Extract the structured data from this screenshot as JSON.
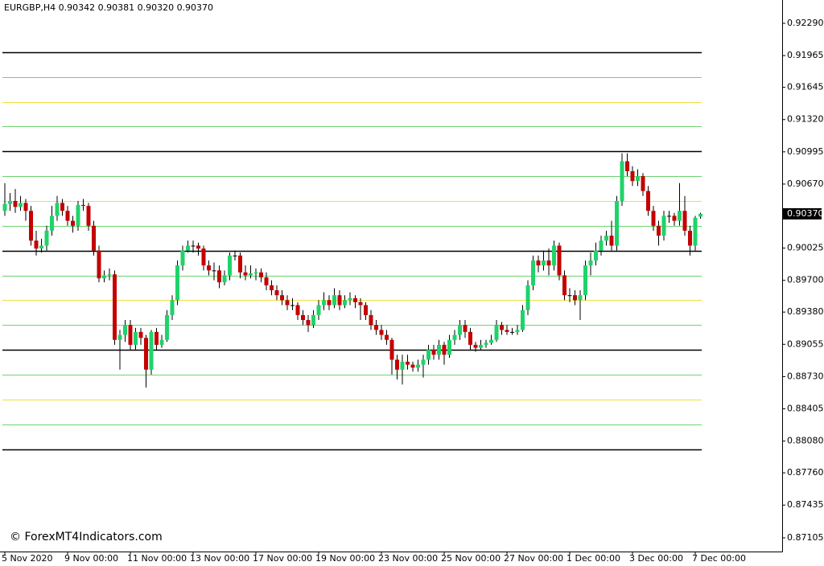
{
  "chart_data": {
    "type": "candlestick",
    "title": "EURGBP,H4  0.90342 0.90381 0.90320 0.90370",
    "watermark": "© ForexMT4Indicators.com",
    "up_color": "#1fd36a",
    "down_color": "#c40000",
    "wick_color": "#000000",
    "ylim": [
      0.86967,
      0.92525
    ],
    "yticks": [
      {
        "value": 0.9229,
        "label": "0.92290"
      },
      {
        "value": 0.91965,
        "label": "0.91965"
      },
      {
        "value": 0.91645,
        "label": "0.91645"
      },
      {
        "value": 0.9132,
        "label": "0.91320"
      },
      {
        "value": 0.90995,
        "label": "0.90995"
      },
      {
        "value": 0.9067,
        "label": "0.90670"
      },
      {
        "value": 0.90025,
        "label": "0.90025"
      },
      {
        "value": 0.897,
        "label": "0.89700"
      },
      {
        "value": 0.8938,
        "label": "0.89380"
      },
      {
        "value": 0.89055,
        "label": "0.89055"
      },
      {
        "value": 0.8873,
        "label": "0.88730"
      },
      {
        "value": 0.88405,
        "label": "0.88405"
      },
      {
        "value": 0.8808,
        "label": "0.88080"
      },
      {
        "value": 0.8776,
        "label": "0.87760"
      },
      {
        "value": 0.87435,
        "label": "0.87435"
      },
      {
        "value": 0.87105,
        "label": "0.87105"
      }
    ],
    "current_price": {
      "value": 0.9037,
      "label": "0.90370"
    },
    "xticks": [
      {
        "value": 0,
        "label": "5 Nov 2020"
      },
      {
        "value": 12,
        "label": "9 Nov 00:00"
      },
      {
        "value": 24,
        "label": "11 Nov 00:00"
      },
      {
        "value": 36,
        "label": "13 Nov 00:00"
      },
      {
        "value": 48,
        "label": "17 Nov 00:00"
      },
      {
        "value": 60,
        "label": "19 Nov 00:00"
      },
      {
        "value": 72,
        "label": "23 Nov 00:00"
      },
      {
        "value": 84,
        "label": "25 Nov 00:00"
      },
      {
        "value": 96,
        "label": "27 Nov 00:00"
      },
      {
        "value": 108,
        "label": "1 Dec 00:00"
      },
      {
        "value": 120,
        "label": "3 Dec 00:00"
      },
      {
        "value": 132,
        "label": "7 Dec 00:00"
      }
    ],
    "levels": [
      {
        "value": 0.92,
        "color": "#000000"
      },
      {
        "value": 0.9175,
        "color": "#6fd36f"
      },
      {
        "value": 0.915,
        "color": "#f0e040"
      },
      {
        "value": 0.9125,
        "color": "#6fd36f"
      },
      {
        "value": 0.91,
        "color": "#000000"
      },
      {
        "value": 0.9075,
        "color": "#6fd36f"
      },
      {
        "value": 0.905,
        "color": "#f0e040"
      },
      {
        "value": 0.9025,
        "color": "#6fd36f"
      },
      {
        "value": 0.9,
        "color": "#000000"
      },
      {
        "value": 0.8975,
        "color": "#6fd36f"
      },
      {
        "value": 0.895,
        "color": "#f0e040"
      },
      {
        "value": 0.8925,
        "color": "#6fd36f"
      },
      {
        "value": 0.89,
        "color": "#000000"
      },
      {
        "value": 0.8875,
        "color": "#6fd36f"
      },
      {
        "value": 0.885,
        "color": "#f0e040"
      },
      {
        "value": 0.8825,
        "color": "#6fd36f"
      },
      {
        "value": 0.88,
        "color": "#000000"
      }
    ],
    "ohlc": [
      [
        0.904,
        0.9068,
        0.9035,
        0.9047
      ],
      [
        0.9047,
        0.9058,
        0.904,
        0.905
      ],
      [
        0.905,
        0.9062,
        0.9038,
        0.9044
      ],
      [
        0.9044,
        0.9055,
        0.904,
        0.9048
      ],
      [
        0.9048,
        0.9052,
        0.903,
        0.904
      ],
      [
        0.904,
        0.9045,
        0.9005,
        0.901
      ],
      [
        0.901,
        0.902,
        0.8995,
        0.9002
      ],
      [
        0.9002,
        0.9012,
        0.8998,
        0.9005
      ],
      [
        0.9005,
        0.9025,
        0.9,
        0.902
      ],
      [
        0.902,
        0.9045,
        0.9015,
        0.9035
      ],
      [
        0.9035,
        0.9055,
        0.903,
        0.9048
      ],
      [
        0.9048,
        0.9052,
        0.9035,
        0.904
      ],
      [
        0.904,
        0.9045,
        0.9025,
        0.903
      ],
      [
        0.903,
        0.9035,
        0.9018,
        0.9025
      ],
      [
        0.9025,
        0.905,
        0.902,
        0.9046
      ],
      [
        0.9046,
        0.9052,
        0.904,
        0.9045
      ],
      [
        0.9045,
        0.9048,
        0.902,
        0.9025
      ],
      [
        0.9025,
        0.903,
        0.8995,
        0.9
      ],
      [
        0.9,
        0.9005,
        0.8968,
        0.8972
      ],
      [
        0.8972,
        0.898,
        0.8968,
        0.8975
      ],
      [
        0.8975,
        0.8982,
        0.897,
        0.8976
      ],
      [
        0.8976,
        0.898,
        0.8905,
        0.891
      ],
      [
        0.891,
        0.892,
        0.888,
        0.8915
      ],
      [
        0.8915,
        0.893,
        0.8908,
        0.8925
      ],
      [
        0.8925,
        0.893,
        0.89,
        0.8905
      ],
      [
        0.8905,
        0.8922,
        0.89,
        0.8918
      ],
      [
        0.8918,
        0.8922,
        0.8905,
        0.8912
      ],
      [
        0.8912,
        0.8915,
        0.8862,
        0.888
      ],
      [
        0.888,
        0.892,
        0.8875,
        0.8918
      ],
      [
        0.8918,
        0.8922,
        0.89,
        0.8905
      ],
      [
        0.8905,
        0.8915,
        0.8902,
        0.891
      ],
      [
        0.891,
        0.894,
        0.8908,
        0.8935
      ],
      [
        0.8935,
        0.8955,
        0.893,
        0.895
      ],
      [
        0.895,
        0.899,
        0.8945,
        0.8985
      ],
      [
        0.8985,
        0.9005,
        0.898,
        0.9
      ],
      [
        0.9,
        0.901,
        0.8998,
        0.9005
      ],
      [
        0.9005,
        0.901,
        0.8998,
        0.9005
      ],
      [
        0.9005,
        0.9008,
        0.8995,
        0.9002
      ],
      [
        0.9002,
        0.9005,
        0.898,
        0.8985
      ],
      [
        0.8985,
        0.899,
        0.8975,
        0.898
      ],
      [
        0.898,
        0.8988,
        0.897,
        0.898
      ],
      [
        0.898,
        0.8985,
        0.8962,
        0.8968
      ],
      [
        0.8968,
        0.898,
        0.8965,
        0.8975
      ],
      [
        0.8975,
        0.8998,
        0.897,
        0.8995
      ],
      [
        0.8995,
        0.9,
        0.899,
        0.8995
      ],
      [
        0.8995,
        0.8998,
        0.8972,
        0.8978
      ],
      [
        0.8978,
        0.8985,
        0.897,
        0.8975
      ],
      [
        0.8975,
        0.8985,
        0.8972,
        0.8977
      ],
      [
        0.8977,
        0.8982,
        0.897,
        0.8978
      ],
      [
        0.8978,
        0.8982,
        0.8968,
        0.8973
      ],
      [
        0.8973,
        0.8978,
        0.896,
        0.8965
      ],
      [
        0.8965,
        0.897,
        0.8955,
        0.896
      ],
      [
        0.896,
        0.8965,
        0.895,
        0.8955
      ],
      [
        0.8955,
        0.896,
        0.8945,
        0.895
      ],
      [
        0.895,
        0.8955,
        0.894,
        0.8945
      ],
      [
        0.8945,
        0.8952,
        0.894,
        0.8945
      ],
      [
        0.8945,
        0.8948,
        0.893,
        0.8935
      ],
      [
        0.8935,
        0.894,
        0.8925,
        0.893
      ],
      [
        0.893,
        0.8935,
        0.8918,
        0.8925
      ],
      [
        0.8925,
        0.894,
        0.8922,
        0.8935
      ],
      [
        0.8935,
        0.895,
        0.893,
        0.8945
      ],
      [
        0.8945,
        0.8958,
        0.894,
        0.895
      ],
      [
        0.895,
        0.8955,
        0.894,
        0.8945
      ],
      [
        0.8945,
        0.8962,
        0.8942,
        0.8955
      ],
      [
        0.8955,
        0.896,
        0.894,
        0.8945
      ],
      [
        0.8945,
        0.8955,
        0.8942,
        0.895
      ],
      [
        0.895,
        0.8958,
        0.8945,
        0.8952
      ],
      [
        0.8952,
        0.8955,
        0.8942,
        0.8948
      ],
      [
        0.8948,
        0.8952,
        0.893,
        0.8945
      ],
      [
        0.8945,
        0.8948,
        0.893,
        0.8935
      ],
      [
        0.8935,
        0.894,
        0.892,
        0.8925
      ],
      [
        0.8925,
        0.893,
        0.8915,
        0.892
      ],
      [
        0.892,
        0.8925,
        0.891,
        0.8915
      ],
      [
        0.8915,
        0.892,
        0.8905,
        0.891
      ],
      [
        0.891,
        0.8912,
        0.8875,
        0.889
      ],
      [
        0.889,
        0.8895,
        0.887,
        0.888
      ],
      [
        0.888,
        0.8895,
        0.8865,
        0.8888
      ],
      [
        0.8888,
        0.8895,
        0.888,
        0.8885
      ],
      [
        0.8885,
        0.8888,
        0.8878,
        0.8882
      ],
      [
        0.8882,
        0.889,
        0.8878,
        0.8885
      ],
      [
        0.8885,
        0.8895,
        0.8872,
        0.889
      ],
      [
        0.889,
        0.8905,
        0.8885,
        0.89
      ],
      [
        0.89,
        0.8905,
        0.889,
        0.8895
      ],
      [
        0.8895,
        0.891,
        0.889,
        0.8905
      ],
      [
        0.8905,
        0.8908,
        0.8885,
        0.8895
      ],
      [
        0.8895,
        0.8915,
        0.8892,
        0.891
      ],
      [
        0.891,
        0.892,
        0.8905,
        0.8915
      ],
      [
        0.8915,
        0.893,
        0.891,
        0.8925
      ],
      [
        0.8925,
        0.893,
        0.8912,
        0.8918
      ],
      [
        0.8918,
        0.8922,
        0.89,
        0.8905
      ],
      [
        0.8905,
        0.8908,
        0.8898,
        0.8902
      ],
      [
        0.8902,
        0.891,
        0.89,
        0.8905
      ],
      [
        0.8905,
        0.891,
        0.8902,
        0.8907
      ],
      [
        0.8907,
        0.8915,
        0.8905,
        0.891
      ],
      [
        0.891,
        0.893,
        0.8908,
        0.8925
      ],
      [
        0.8925,
        0.8928,
        0.8915,
        0.892
      ],
      [
        0.892,
        0.8925,
        0.8915,
        0.8918
      ],
      [
        0.8918,
        0.8922,
        0.8915,
        0.8918
      ],
      [
        0.8918,
        0.8925,
        0.8915,
        0.892
      ],
      [
        0.892,
        0.8945,
        0.8918,
        0.894
      ],
      [
        0.894,
        0.897,
        0.8935,
        0.8965
      ],
      [
        0.8965,
        0.8995,
        0.896,
        0.899
      ],
      [
        0.899,
        0.8995,
        0.8978,
        0.8985
      ],
      [
        0.8985,
        0.9,
        0.898,
        0.899
      ],
      [
        0.899,
        0.9002,
        0.8975,
        0.8985
      ],
      [
        0.8985,
        0.901,
        0.898,
        0.9005
      ],
      [
        0.9005,
        0.9008,
        0.897,
        0.8975
      ],
      [
        0.8975,
        0.898,
        0.895,
        0.8955
      ],
      [
        0.8955,
        0.8962,
        0.8948,
        0.8955
      ],
      [
        0.8955,
        0.896,
        0.8945,
        0.895
      ],
      [
        0.895,
        0.896,
        0.893,
        0.8955
      ],
      [
        0.8955,
        0.899,
        0.895,
        0.8985
      ],
      [
        0.8985,
        0.8998,
        0.8975,
        0.899
      ],
      [
        0.899,
        0.9008,
        0.8985,
        0.9
      ],
      [
        0.9,
        0.9015,
        0.8995,
        0.901
      ],
      [
        0.901,
        0.902,
        0.9005,
        0.9015
      ],
      [
        0.9015,
        0.903,
        0.9,
        0.9005
      ],
      [
        0.9005,
        0.9055,
        0.9,
        0.905
      ],
      [
        0.905,
        0.9098,
        0.9045,
        0.909
      ],
      [
        0.909,
        0.9098,
        0.9075,
        0.908
      ],
      [
        0.908,
        0.9085,
        0.9065,
        0.907
      ],
      [
        0.907,
        0.9082,
        0.9065,
        0.9075
      ],
      [
        0.9075,
        0.9078,
        0.9055,
        0.906
      ],
      [
        0.906,
        0.9065,
        0.9035,
        0.904
      ],
      [
        0.904,
        0.9045,
        0.902,
        0.9025
      ],
      [
        0.9025,
        0.903,
        0.9005,
        0.9015
      ],
      [
        0.9015,
        0.904,
        0.901,
        0.9035
      ],
      [
        0.9035,
        0.904,
        0.9028,
        0.9035
      ],
      [
        0.9035,
        0.9038,
        0.9025,
        0.903
      ],
      [
        0.903,
        0.9068,
        0.9025,
        0.904
      ],
      [
        0.904,
        0.9055,
        0.9015,
        0.902
      ],
      [
        0.902,
        0.9025,
        0.8995,
        0.9005
      ],
      [
        0.9005,
        0.9035,
        0.9,
        0.9033
      ],
      [
        0.90342,
        0.90381,
        0.9032,
        0.9037
      ]
    ]
  }
}
